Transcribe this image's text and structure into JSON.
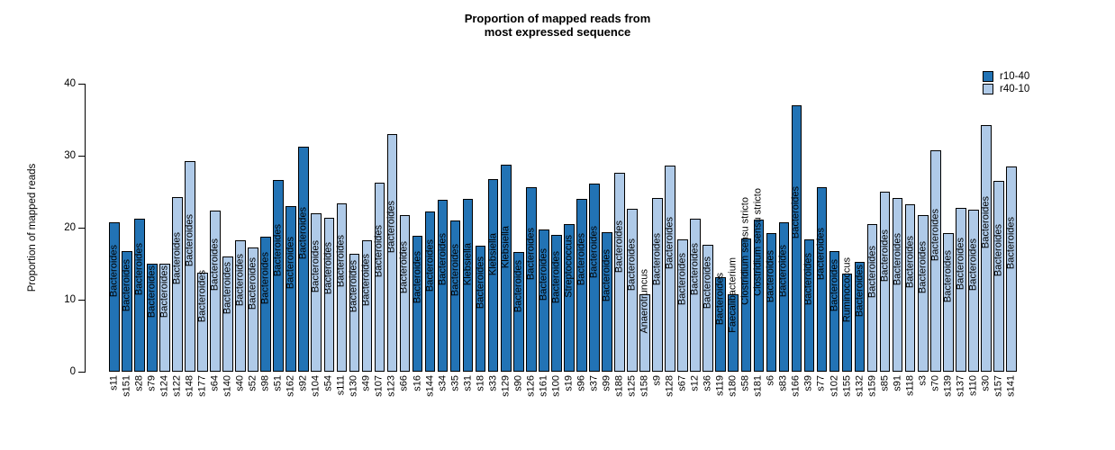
{
  "title": {
    "line1": "Proportion of mapped reads from",
    "line2": "most expressed sequence"
  },
  "y_axis": {
    "label": "Proportion of mapped reads",
    "ticks": [
      0,
      10,
      20,
      30,
      40
    ],
    "max": 40
  },
  "legend": [
    {
      "label": "r10-40",
      "color": "#2273b5"
    },
    {
      "label": "r40-10",
      "color": "#afcae8"
    }
  ],
  "chart_data": {
    "type": "bar",
    "title": "Proportion of mapped reads from most expressed sequence",
    "xlabel": "",
    "ylabel": "Proportion of mapped reads",
    "ylim": [
      0,
      40
    ],
    "grid": false,
    "legend_position": "top-right",
    "colors": {
      "r10-40": "#2273b5",
      "r40-10": "#afcae8"
    },
    "categories": [
      "s11",
      "s151",
      "s28",
      "s79",
      "s124",
      "s122",
      "s148",
      "s177",
      "s64",
      "s140",
      "s40",
      "s52",
      "s98",
      "s51",
      "s162",
      "s92",
      "s104",
      "s54",
      "s111",
      "s130",
      "s49",
      "s107",
      "s123",
      "s66",
      "s16",
      "s144",
      "s34",
      "s35",
      "s31",
      "s18",
      "s33",
      "s129",
      "s90",
      "s126",
      "s161",
      "s100",
      "s19",
      "s96",
      "s37",
      "s99",
      "s188",
      "s125",
      "s158",
      "s9",
      "s128",
      "s67",
      "s12",
      "s36",
      "s119",
      "s180",
      "s58",
      "s181",
      "s6",
      "s83",
      "s166",
      "s39",
      "s77",
      "s102",
      "s155",
      "s132",
      "s159",
      "s85",
      "s91",
      "s118",
      "s3",
      "s70",
      "s139",
      "s137",
      "s110",
      "s30",
      "s157",
      "s141"
    ],
    "values": [
      20.8,
      16.7,
      21.2,
      15.0,
      15.0,
      24.2,
      29.2,
      13.7,
      22.4,
      16.0,
      18.3,
      17.2,
      18.7,
      26.6,
      23.0,
      31.2,
      22.0,
      21.4,
      23.4,
      16.4,
      18.2,
      26.2,
      33.0,
      21.7,
      18.9,
      22.2,
      23.9,
      21.0,
      24.0,
      17.5,
      26.8,
      28.8,
      16.6,
      25.6,
      19.7,
      19.0,
      20.5,
      24.0,
      26.1,
      19.4,
      27.6,
      22.6,
      10.7,
      24.1,
      28.6,
      18.4,
      21.3,
      17.6,
      13.1,
      10.8,
      18.5,
      21.1,
      19.3,
      20.7,
      37.0,
      18.4,
      25.6,
      16.7,
      13.6,
      15.3,
      20.5,
      25.0,
      24.1,
      23.2,
      21.7,
      30.7,
      19.3,
      22.8,
      22.5,
      34.2,
      26.5,
      28.5
    ],
    "groups": [
      "r10-40",
      "r10-40",
      "r10-40",
      "r10-40",
      "r40-10",
      "r40-10",
      "r40-10",
      "r40-10",
      "r40-10",
      "r40-10",
      "r40-10",
      "r40-10",
      "r10-40",
      "r10-40",
      "r10-40",
      "r10-40",
      "r40-10",
      "r40-10",
      "r40-10",
      "r40-10",
      "r40-10",
      "r40-10",
      "r40-10",
      "r40-10",
      "r10-40",
      "r10-40",
      "r10-40",
      "r10-40",
      "r10-40",
      "r10-40",
      "r10-40",
      "r10-40",
      "r10-40",
      "r10-40",
      "r10-40",
      "r10-40",
      "r10-40",
      "r10-40",
      "r10-40",
      "r10-40",
      "r40-10",
      "r40-10",
      "r40-10",
      "r40-10",
      "r40-10",
      "r40-10",
      "r40-10",
      "r40-10",
      "r10-40",
      "r10-40",
      "r10-40",
      "r10-40",
      "r10-40",
      "r10-40",
      "r10-40",
      "r10-40",
      "r10-40",
      "r10-40",
      "r10-40",
      "r10-40",
      "r40-10",
      "r40-10",
      "r40-10",
      "r40-10",
      "r40-10",
      "r40-10",
      "r40-10",
      "r40-10",
      "r40-10",
      "r40-10",
      "r40-10",
      "r40-10"
    ],
    "bar_text": [
      "Bacteroides",
      "Bacteroides",
      "Bacteroides",
      "Bacteroides",
      "Bacteroides",
      "Bacteroides",
      "Bacteroides",
      "Bacteroides",
      "Bacteroides",
      "Bacteroides",
      "Bacteroides",
      "Bacteroides",
      "Bacteroides",
      "Bacteroides",
      "Bacteroides",
      "Bacteroides",
      "Bacteroides",
      "Bacteroides",
      "Bacteroides",
      "Bacteroides",
      "Bacteroides",
      "Bacteroides",
      "Bacteroides",
      "Bacteroides",
      "Bacteroides",
      "Bacteroides",
      "Bacteroides",
      "Bacteroides",
      "Klebsiella",
      "Bacteroides",
      "Klebsiella",
      "Klebsiella",
      "Bacteroides",
      "Bacteroides",
      "Bacteroides",
      "Bacteroides",
      "Streptococcus",
      "Bacteroides",
      "Bacteroides",
      "Bacteroides",
      "Bacteroides",
      "Bacteroides",
      "Anaerotruncus",
      "Bacteroides",
      "Bacteroides",
      "Bacteroides",
      "Bacteroides",
      "Bacteroides",
      "Bacteroides",
      "Faecalibacterium",
      "Clostridium sensu stricto",
      "Clostridium sensu stricto",
      "Bacteroides",
      "Bacteroides",
      "Bacteroides",
      "Bacteroides",
      "Bacteroides",
      "Bacteroides",
      "Ruminococcus",
      "Bacteroides",
      "Bacteroides",
      "Bacteroides",
      "Bacteroides",
      "Bacteroides",
      "Bacteroides",
      "Bacteroides",
      "Bacteroides",
      "Bacteroides",
      "Bacteroides",
      "Bacteroides",
      "Bacteroides",
      "Bacteroides"
    ]
  }
}
